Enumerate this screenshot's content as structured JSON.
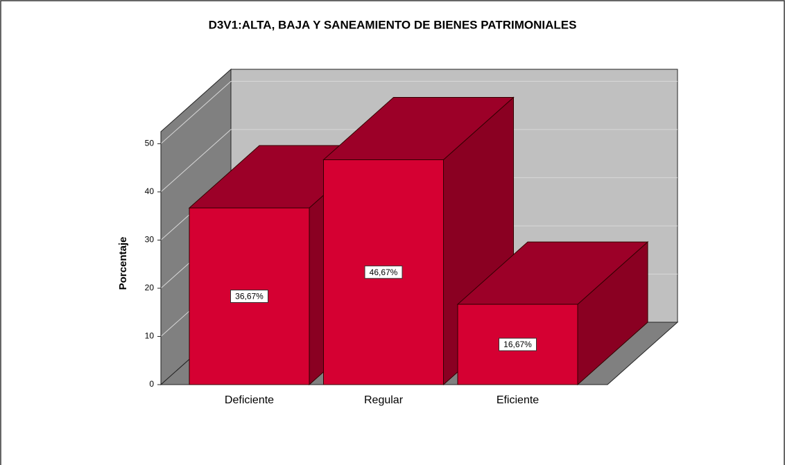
{
  "chart_data": {
    "type": "bar3d",
    "title": "D3V1:ALTA, BAJA Y SANEAMIENTO DE BIENES PATRIMONIALES",
    "y_label": "Porcentaje",
    "categories": [
      "Deficiente",
      "Regular",
      "Eficiente"
    ],
    "values": [
      36.67,
      46.67,
      16.67
    ],
    "value_labels": [
      "36,67%",
      "46,67%",
      "16,67%"
    ],
    "color": "#d50032",
    "ylim": [
      0,
      52.5
    ],
    "yticks": [
      0,
      10,
      20,
      30,
      40,
      50
    ],
    "grid": true
  }
}
